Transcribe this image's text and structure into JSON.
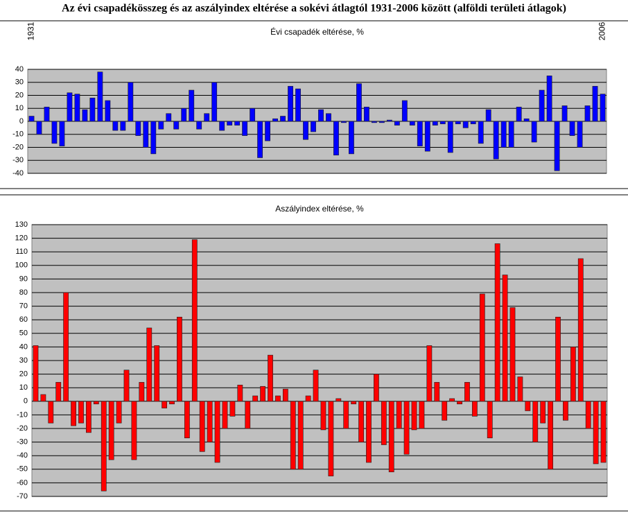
{
  "title": "Az évi csapadékösszeg és az aszályindex eltérése a sokévi átlagtól 1931-2006 között (alföldi területi átlagok)",
  "chart_data": [
    {
      "type": "bar",
      "title": "Évi csapadék eltérése, %",
      "categories": [
        "1931",
        null,
        null,
        null,
        null,
        null,
        null,
        null,
        null,
        null,
        null,
        null,
        null,
        null,
        null,
        null,
        null,
        null,
        null,
        null,
        null,
        null,
        null,
        null,
        null,
        null,
        null,
        null,
        null,
        null,
        null,
        null,
        null,
        null,
        null,
        null,
        null,
        null,
        null,
        null,
        null,
        null,
        null,
        null,
        null,
        null,
        null,
        null,
        null,
        null,
        null,
        null,
        null,
        null,
        null,
        null,
        null,
        null,
        null,
        null,
        null,
        null,
        null,
        null,
        null,
        null,
        null,
        null,
        null,
        null,
        null,
        null,
        null,
        null,
        null,
        "2006"
      ],
      "values": [
        4,
        -10,
        11,
        -17,
        -19,
        22,
        21,
        9,
        18,
        38,
        16,
        -7,
        -7,
        30,
        -11,
        -20,
        -25,
        -6,
        6,
        -6,
        10,
        24,
        -6,
        6,
        30,
        -7,
        -3,
        -3,
        -11,
        10,
        -28,
        -15,
        2,
        4,
        27,
        25,
        -14,
        -8,
        9,
        6,
        -26,
        -1,
        -25,
        29,
        11,
        -1,
        -1,
        1,
        -3,
        16,
        -3,
        -19,
        -23,
        -3,
        -2,
        -24,
        -2,
        -5,
        -2,
        -17,
        9,
        -29,
        -20,
        -20,
        11,
        2,
        -16,
        24,
        35,
        -38,
        12,
        -11,
        -20,
        12,
        27,
        21
      ],
      "color": "#0000ff",
      "ylim": [
        -40,
        40
      ],
      "yticks": [
        -40,
        -30,
        -20,
        -10,
        0,
        10,
        20,
        30,
        40
      ],
      "grid": true
    },
    {
      "type": "bar",
      "title": "Aszályindex eltérése, %",
      "values": [
        41,
        5,
        -16,
        14,
        80,
        -18,
        -16,
        -23,
        -2,
        -66,
        -43,
        -16,
        23,
        -43,
        14,
        54,
        41,
        -5,
        -2,
        62,
        -27,
        119,
        -37,
        -30,
        -45,
        -20,
        -11,
        12,
        -20,
        4,
        11,
        34,
        4,
        9,
        -50,
        -50,
        4,
        23,
        -21,
        -55,
        2,
        -20,
        -2,
        -30,
        -45,
        20,
        -32,
        -52,
        -20,
        -39,
        -21,
        -20,
        41,
        14,
        -14,
        2,
        -2,
        14,
        -11,
        79,
        -27,
        116,
        93,
        69,
        18,
        -7,
        -30,
        -16,
        -50,
        62,
        -14,
        40,
        105,
        -20,
        -46,
        -45
      ],
      "color": "#ff0000",
      "ylim": [
        -70,
        130
      ],
      "yticks": [
        -70,
        -60,
        -50,
        -40,
        -30,
        -20,
        -10,
        0,
        10,
        20,
        30,
        40,
        50,
        60,
        70,
        80,
        90,
        100,
        110,
        120,
        130
      ],
      "grid": true
    }
  ]
}
